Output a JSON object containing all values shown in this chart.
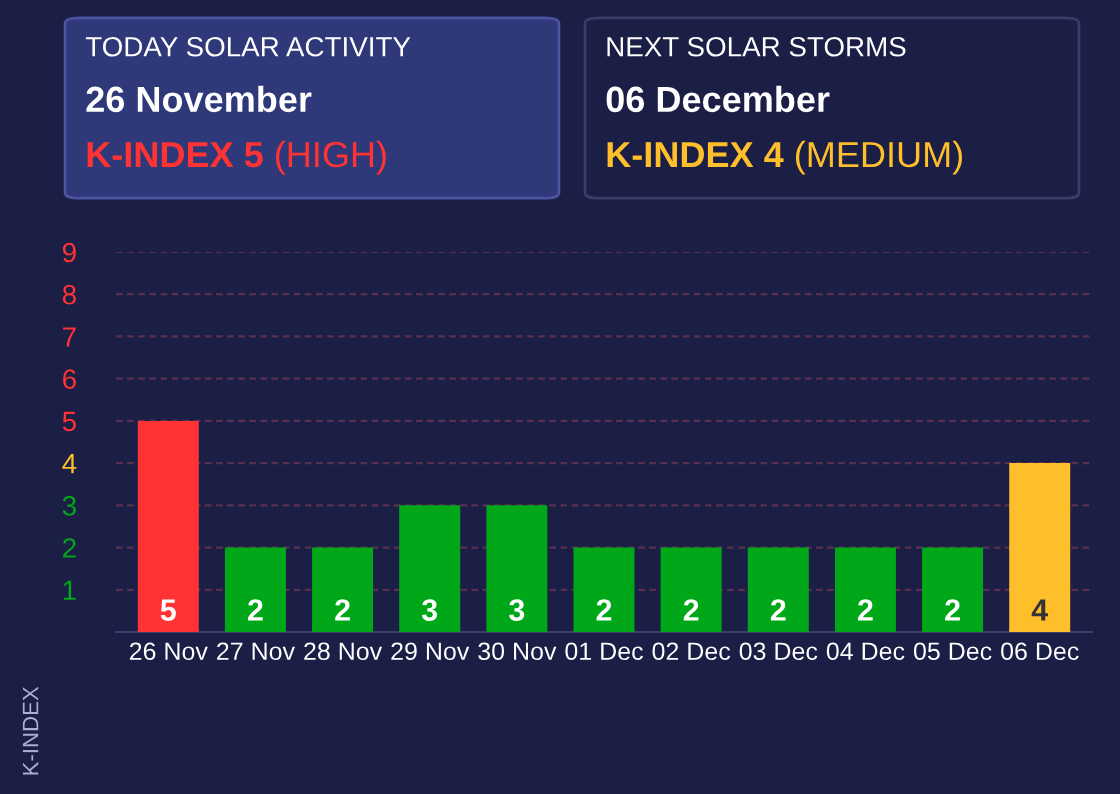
{
  "chart_data": [
    {
      "type": "other",
      "title": "TODAY SOLAR ACTIVITY",
      "subtitle": "26 November",
      "annotations": [
        "K-INDEX 5",
        " (HIGH)"
      ],
      "color": "#ff3333"
    },
    {
      "type": "other",
      "title": "NEXT SOLAR STORMS",
      "subtitle": "06 December",
      "annotations": [
        "K-INDEX 4",
        " (MEDIUM)"
      ],
      "color": "#ffbf2a"
    },
    {
      "type": "bar",
      "ylabel": "K-INDEX",
      "categories": [
        "26 Nov",
        "27 Nov",
        "28 Nov",
        "29 Nov",
        "30 Nov",
        "01 Dec",
        "02 Dec",
        "03 Dec",
        "04 Dec",
        "05 Dec",
        "06 Dec"
      ],
      "values": [
        5,
        2,
        2,
        3,
        3,
        2,
        2,
        2,
        2,
        2,
        4
      ],
      "colors": [
        "#ff3333",
        "#00a819",
        "#00a819",
        "#00a819",
        "#00a819",
        "#00a819",
        "#00a819",
        "#00a819",
        "#00a819",
        "#00a819",
        "#ffbf2a"
      ],
      "ylim": [
        0,
        9
      ],
      "yticks": [
        1,
        2,
        3,
        4,
        5,
        6,
        7,
        8,
        9
      ],
      "grid": "y",
      "data_labels": true
    }
  ]
}
